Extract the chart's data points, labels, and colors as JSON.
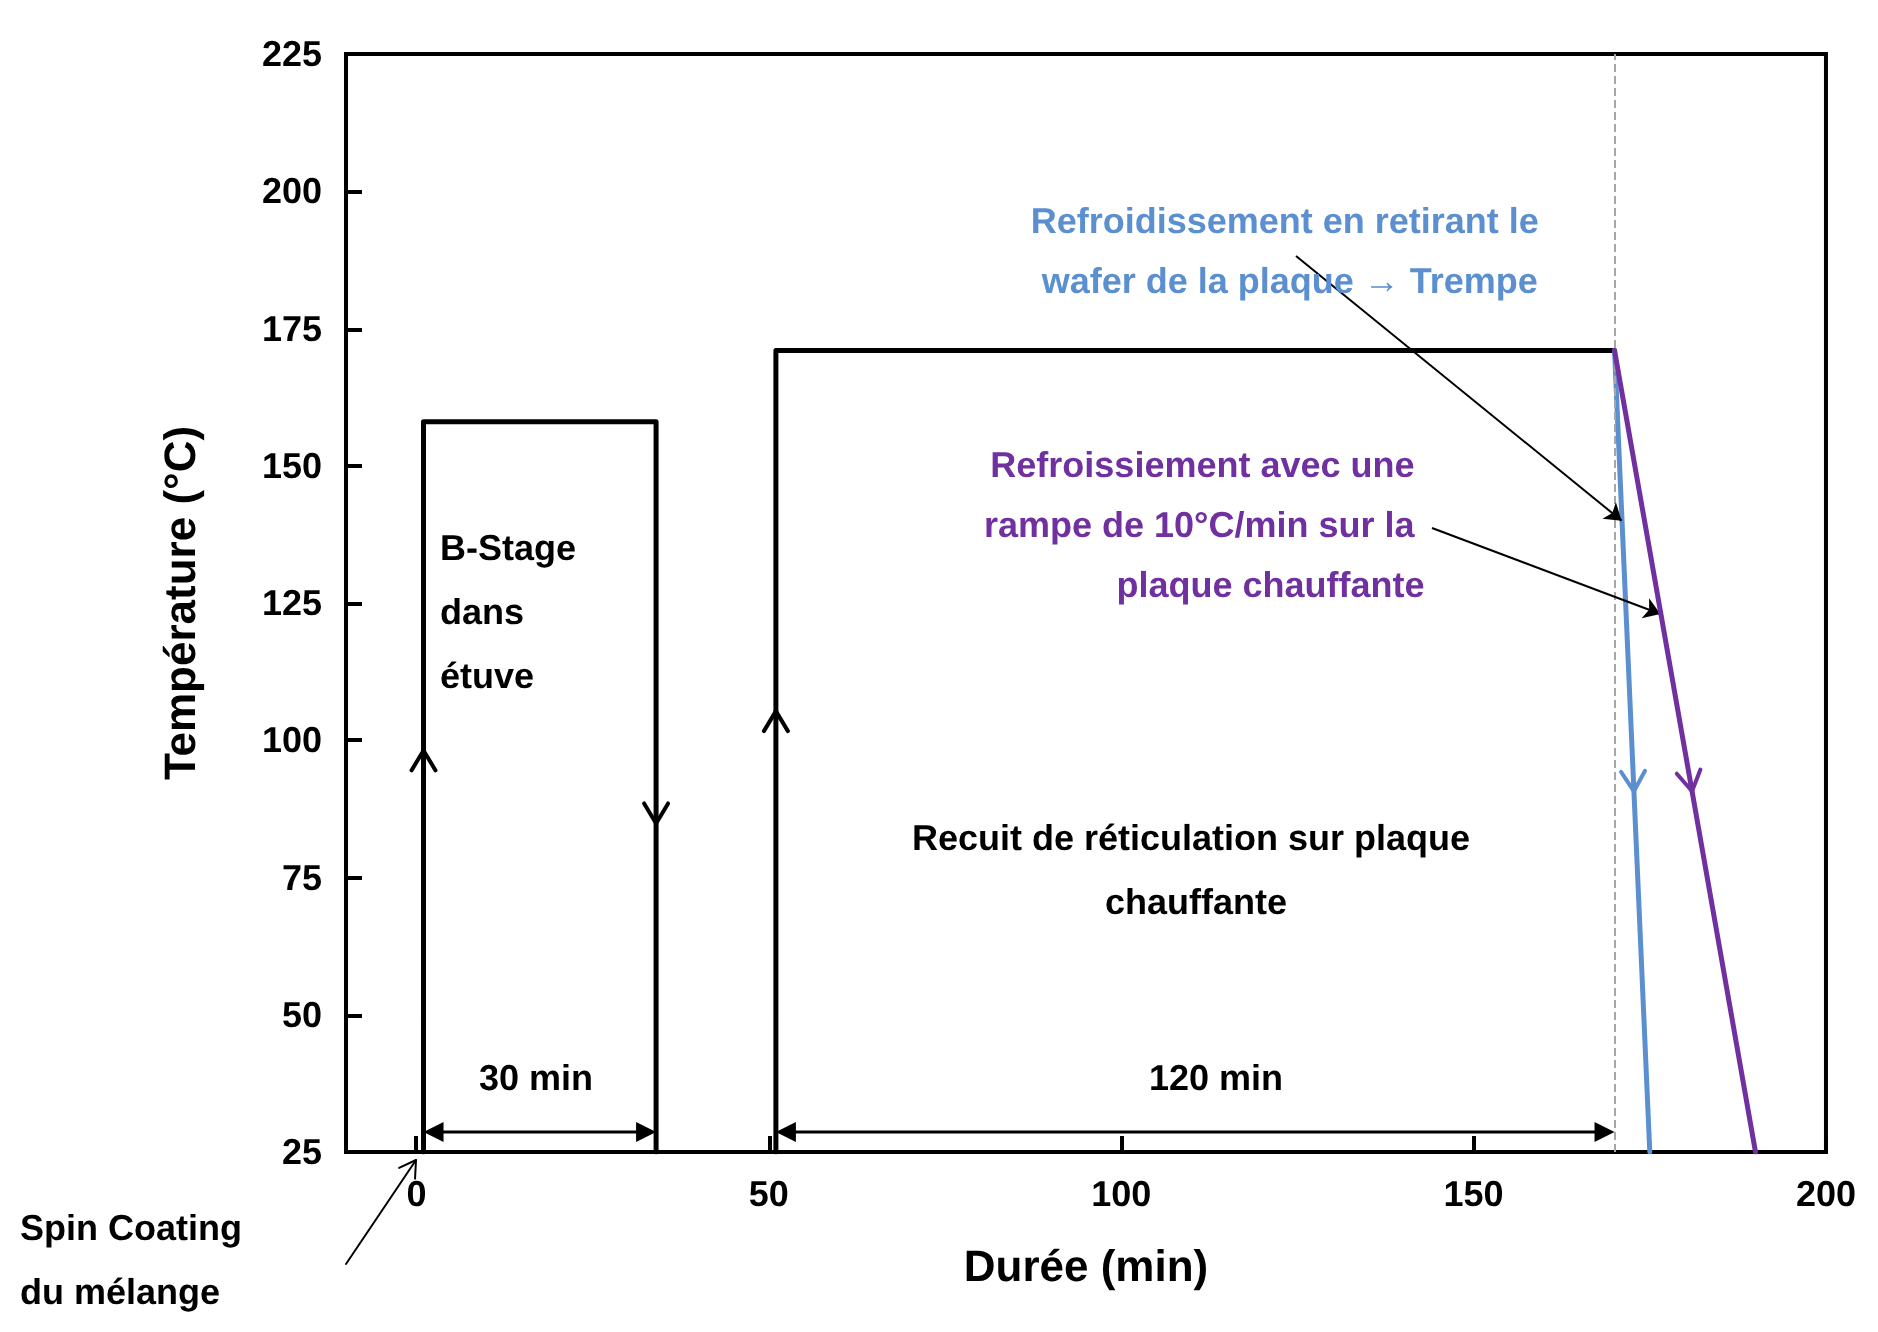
{
  "chart_data": {
    "type": "line",
    "xlabel": "Durée (min)",
    "ylabel": "Température (°C)",
    "xlim": [
      -10,
      200
    ],
    "xticks": [
      0,
      50,
      100,
      150,
      200
    ],
    "ylim": [
      25,
      225
    ],
    "yticks": [
      25,
      50,
      75,
      100,
      125,
      150,
      175,
      200,
      225
    ],
    "grid": false,
    "marker": "none",
    "line_style": "solid",
    "series": [
      {
        "color": "#000000",
        "x": [
          1,
          1,
          34,
          34,
          42,
          51,
          51,
          170
        ],
        "values": [
          25,
          158,
          158,
          25,
          null,
          25,
          171,
          171
        ]
      },
      {
        "color": "#5b8fcf",
        "x": [
          170,
          175
        ],
        "values": [
          171,
          25
        ]
      },
      {
        "color": "#7030a0",
        "x": [
          170,
          190
        ],
        "values": [
          171,
          25
        ]
      }
    ],
    "ref_lines": [
      {
        "axis": "x",
        "value": 170,
        "color": "#a6a6a6",
        "line_style": "dashed"
      }
    ],
    "annotations": [
      "B-Stage dans étuve",
      "30 min",
      "Recuit de réticulation sur plaque chauffante",
      "120 min",
      {
        "text": "Refroidissement en retirant le wafer de la plaque → Trempe",
        "x": 171,
        "y": 140
      },
      {
        "text": "Refroissiement avec une rampe de 10°C/min sur la plaque chauffante",
        "x": 176.5,
        "y": 123
      },
      "Spin Coating du mélange"
    ]
  }
}
